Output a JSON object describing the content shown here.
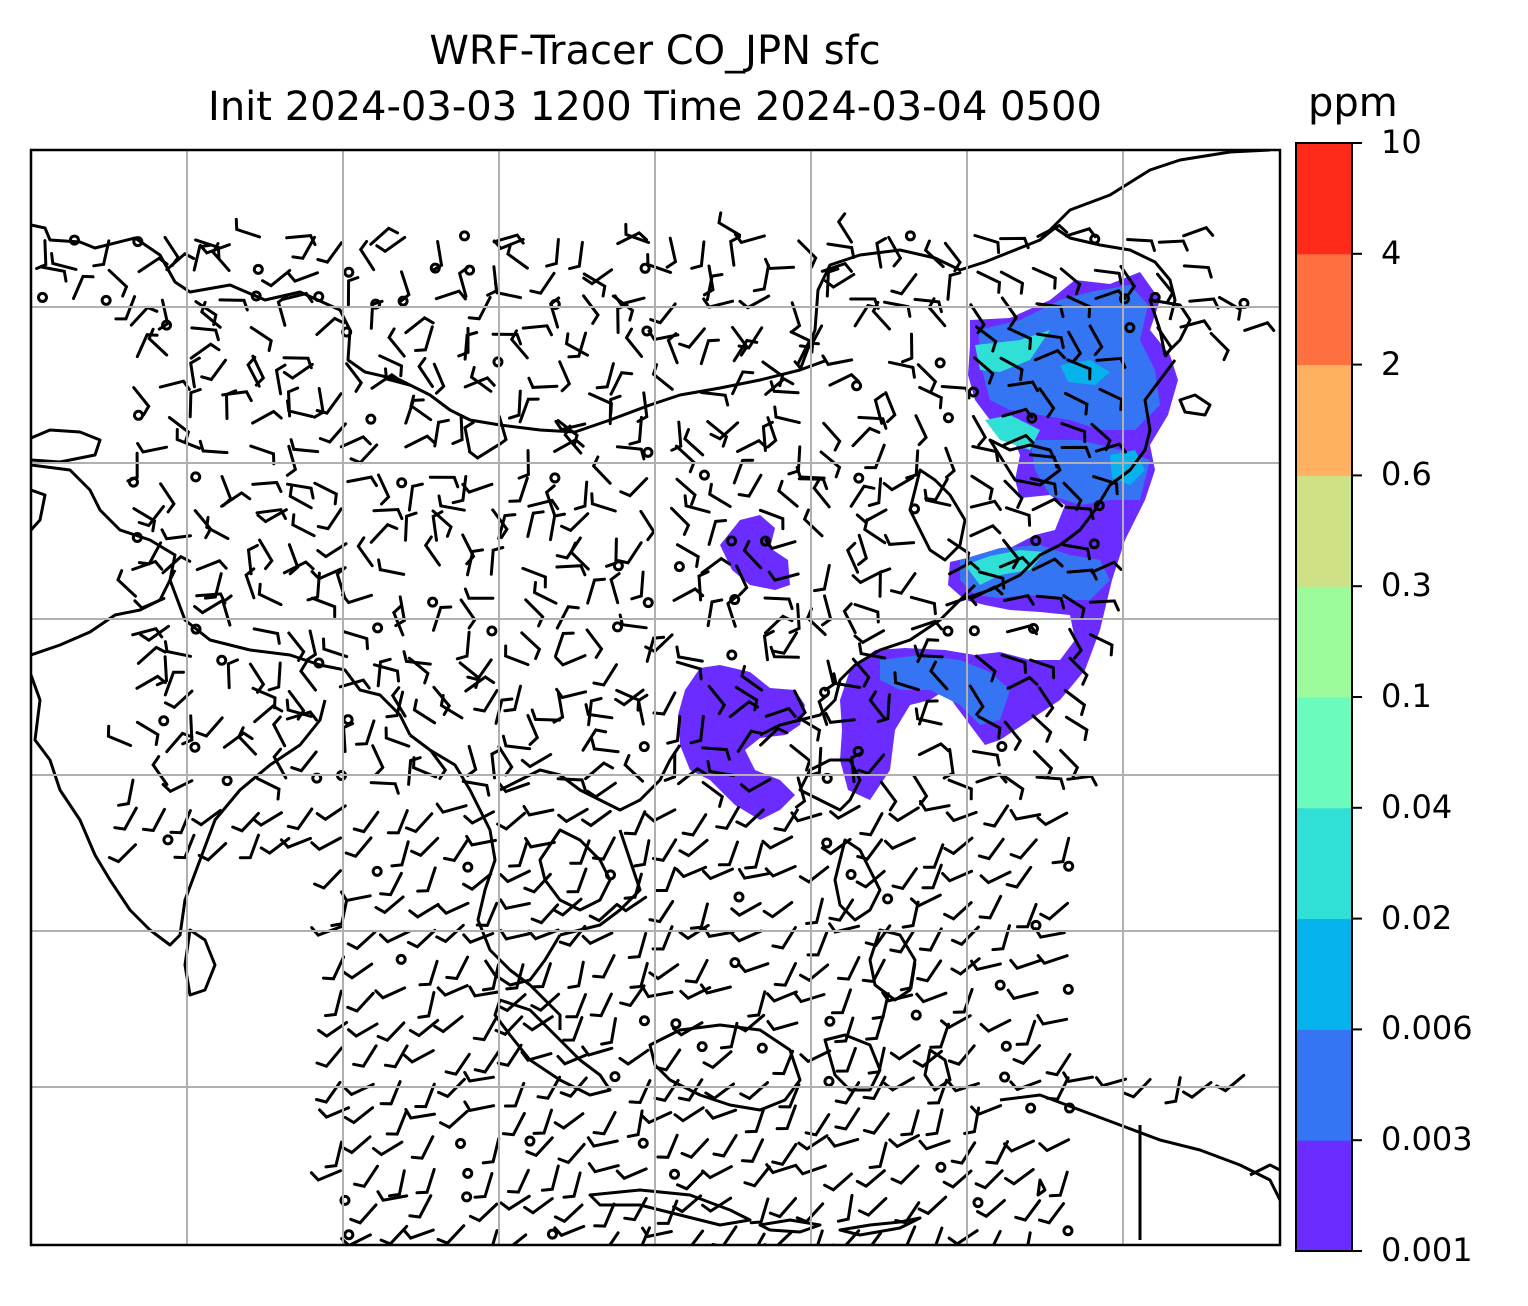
{
  "title_line1": "WRF-Tracer CO_JPN sfc",
  "title_line2": "Init 2024-03-03 1200 Time 2024-03-04 0500",
  "colorbar": {
    "unit": "ppm",
    "levels": [
      "0.001",
      "0.003",
      "0.006",
      "0.02",
      "0.04",
      "0.1",
      "0.3",
      "0.6",
      "2",
      "4",
      "10"
    ],
    "colors": [
      "#6a2cff",
      "#3574f2",
      "#06b3ec",
      "#30dfd6",
      "#6bfbbc",
      "#9cfb9a",
      "#cfe186",
      "#ffb061",
      "#ff7040",
      "#ff2a1a"
    ]
  },
  "map": {
    "gridlines": true,
    "wind_barbs": true,
    "tracer_colors_present": [
      "#6a2cff",
      "#3574f2",
      "#06b3ec",
      "#30dfd6"
    ]
  }
}
